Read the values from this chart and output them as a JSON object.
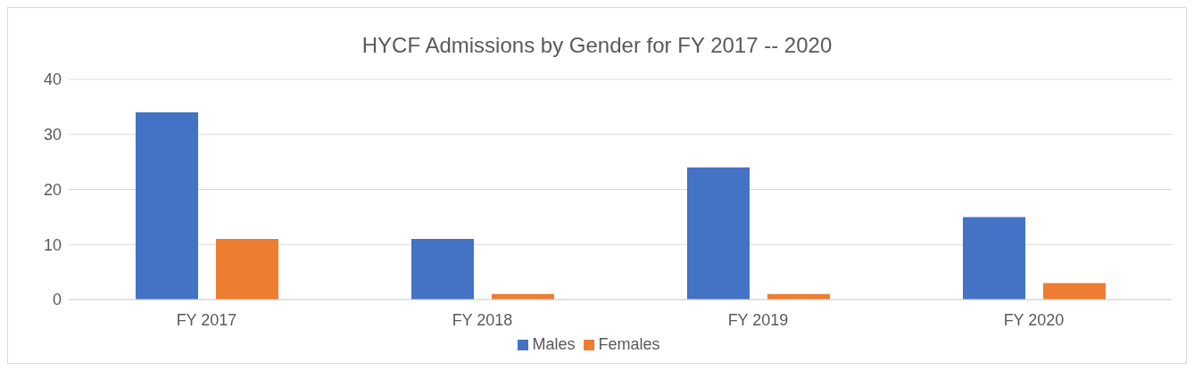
{
  "chart_data": {
    "type": "bar",
    "title": "HYCF Admissions by Gender for FY 2017 -- 2020",
    "categories": [
      "FY 2017",
      "FY 2018",
      "FY 2019",
      "FY 2020"
    ],
    "series": [
      {
        "name": "Males",
        "color": "#4472c4",
        "values": [
          34,
          11,
          24,
          15
        ]
      },
      {
        "name": "Females",
        "color": "#ed7d31",
        "values": [
          11,
          1,
          1,
          3
        ]
      }
    ],
    "ylim": [
      0,
      40
    ],
    "yticks": [
      0,
      10,
      20,
      30,
      40
    ],
    "grid": "y",
    "legend": "bottom"
  }
}
